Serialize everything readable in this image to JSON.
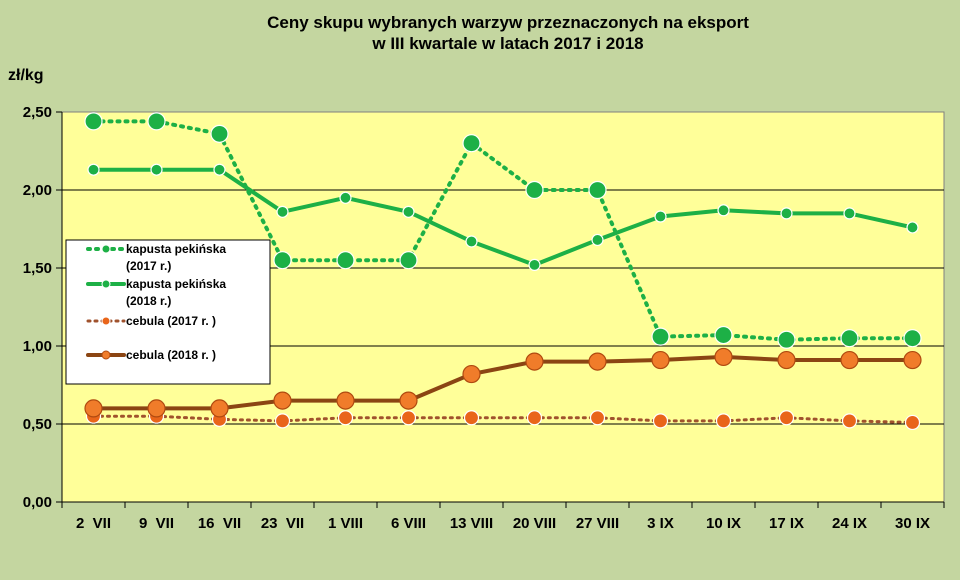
{
  "chart_data": {
    "type": "line",
    "title": [
      "Ceny skupu wybranych warzyw przeznaczonych na eksport",
      "w III kwartale w latach 2017 i 2018"
    ],
    "ylabel": "zł/kg",
    "xlabel": "",
    "categories": [
      "2  VII",
      "9  VII",
      "16  VII",
      "23  VII",
      "1 VIII",
      "6 VIII",
      "13 VIII",
      "20 VIII",
      "27 VIII",
      "3 IX",
      "10 IX",
      "17 IX",
      "24 IX",
      "30 IX"
    ],
    "ylim": [
      0,
      2.5
    ],
    "yticks": [
      "0,00",
      "0,50",
      "1,00",
      "1,50",
      "2,00",
      "2,50"
    ],
    "grid": true,
    "legend_position": "left",
    "colors": {
      "plot_background": "#ffff99",
      "page_background": "#c4d6a0",
      "cabbage": "#1db046",
      "onion_2017": "#e9651a",
      "onion_2018_line": "#8b4513",
      "onion_2018_marker": "#f07c2a"
    },
    "series": [
      {
        "name": [
          "kapusta pekińska",
          "(2017 r.)"
        ],
        "style": "dotted",
        "color_key": "cabbage",
        "values": [
          2.44,
          2.44,
          2.36,
          1.55,
          1.55,
          1.55,
          2.3,
          2.0,
          2.0,
          1.06,
          1.07,
          1.04,
          1.05,
          1.05
        ]
      },
      {
        "name": [
          "kapusta pekińska",
          "(2018 r.)"
        ],
        "style": "solid",
        "color_key": "cabbage",
        "values": [
          2.13,
          2.13,
          2.13,
          1.86,
          1.95,
          1.86,
          1.67,
          1.52,
          1.68,
          1.83,
          1.87,
          1.85,
          1.85,
          1.76
        ]
      },
      {
        "name": [
          "cebula (2017 r. )"
        ],
        "style": "dotted",
        "color_key": "onion_2017",
        "values": [
          0.55,
          0.55,
          0.53,
          0.52,
          0.54,
          0.54,
          0.54,
          0.54,
          0.54,
          0.52,
          0.52,
          0.54,
          0.52,
          0.51
        ]
      },
      {
        "name": [
          "cebula (2018 r. )"
        ],
        "style": "solid",
        "color_key": "onion_2018_line",
        "values": [
          0.6,
          0.6,
          0.6,
          0.65,
          0.65,
          0.65,
          0.82,
          0.9,
          0.9,
          0.91,
          0.93,
          0.91,
          0.91,
          0.91
        ]
      }
    ]
  }
}
